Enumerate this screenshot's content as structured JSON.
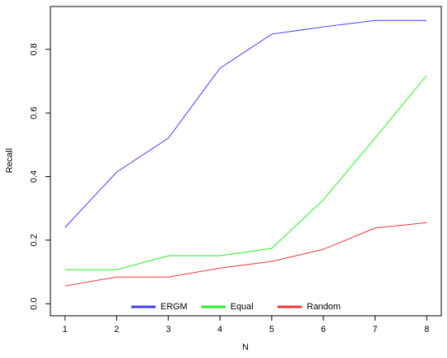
{
  "chart_data": {
    "type": "line",
    "x": [
      1,
      2,
      3,
      4,
      5,
      6,
      7,
      8
    ],
    "xlabel": "N",
    "ylabel": "Recall",
    "xlim": [
      0.717,
      8.283
    ],
    "ylim": [
      -0.038,
      0.935
    ],
    "xticks": [
      1,
      2,
      3,
      4,
      5,
      6,
      7,
      8
    ],
    "yticks": [
      {
        "value": 0,
        "label": "0.0"
      },
      0.2,
      0.4,
      0.6,
      0.8
    ],
    "legend": "bottom",
    "series": [
      {
        "name": "ERGM",
        "color": "#3b3bff",
        "values": [
          0.24,
          0.414,
          0.521,
          0.741,
          0.848,
          0.871,
          0.891,
          0.891
        ]
      },
      {
        "name": "Equal",
        "color": "#22ee22",
        "values": [
          0.107,
          0.107,
          0.151,
          0.151,
          0.174,
          0.327,
          0.521,
          0.718
        ]
      },
      {
        "name": "Random",
        "color": "#ee3333",
        "values": [
          0.056,
          0.084,
          0.084,
          0.112,
          0.133,
          0.171,
          0.238,
          0.255
        ]
      }
    ]
  }
}
